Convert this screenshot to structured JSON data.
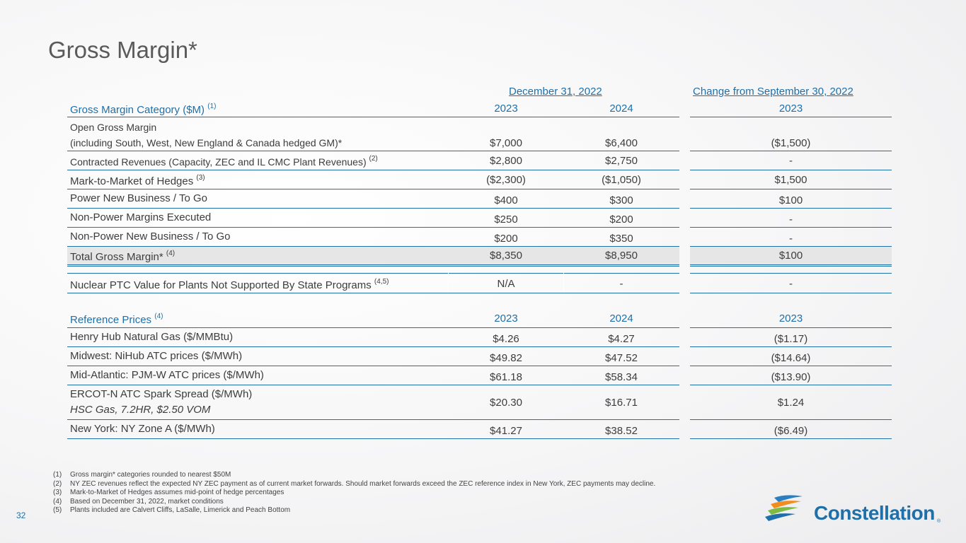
{
  "title": "Gross Margin*",
  "group_headers": {
    "dec": "December 31, 2022",
    "change": "Change from September 30, 2022"
  },
  "margin_table": {
    "category_header": "Gross Margin Category ($M)",
    "category_note": "(1)",
    "col1": "2023",
    "col2": "2024",
    "col3": "2023",
    "rows": [
      {
        "label1": "Open Gross Margin",
        "label2": "(including South, West, New England & Canada hedged GM)*",
        "note": "",
        "v1": "$7,000",
        "v2": "$6,400",
        "v3": "($1,500)"
      },
      {
        "label1": "Contracted Revenues (Capacity, ZEC and IL CMC Plant Revenues)",
        "note": "(2)",
        "v1": "$2,800",
        "v2": "$2,750",
        "v3": "-"
      },
      {
        "label1": "Mark-to-Market of Hedges",
        "note": "(3)",
        "v1": "($2,300)",
        "v2": "($1,050)",
        "v3": "$1,500"
      },
      {
        "label1": "Power New Business / To Go",
        "note": "",
        "v1": "$400",
        "v2": "$300",
        "v3": "$100"
      },
      {
        "label1": "Non-Power Margins Executed",
        "note": "",
        "v1": "$250",
        "v2": "$200",
        "v3": "-"
      },
      {
        "label1": "Non-Power New Business / To Go",
        "note": "",
        "v1": "$200",
        "v2": "$350",
        "v3": "-"
      }
    ],
    "total": {
      "label": "Total Gross Margin*",
      "note": "(4)",
      "v1": "$8,350",
      "v2": "$8,950",
      "v3": "$100"
    },
    "ptc": {
      "label": "Nuclear PTC Value for Plants Not Supported By State Programs",
      "note": "(4,5)",
      "v1": "N/A",
      "v2": "-",
      "v3": "-"
    }
  },
  "ref_table": {
    "header": "Reference Prices",
    "note": "(4)",
    "col1": "2023",
    "col2": "2024",
    "col3": "2023",
    "rows": [
      {
        "label1": "Henry Hub Natural Gas ($/MMBtu)",
        "v1": "$4.26",
        "v2": "$4.27",
        "v3": "($1.17)"
      },
      {
        "label1": "Midwest: NiHub ATC prices ($/MWh)",
        "v1": "$49.82",
        "v2": "$47.52",
        "v3": "($14.64)"
      },
      {
        "label1": "Mid-Atlantic: PJM-W ATC prices ($/MWh)",
        "v1": "$61.18",
        "v2": "$58.34",
        "v3": "($13.90)"
      },
      {
        "label1": "ERCOT-N ATC Spark Spread ($/MWh)",
        "label2": "HSC Gas, 7.2HR, $2.50 VOM",
        "v1": "$20.30",
        "v2": "$16.71",
        "v3": "$1.24"
      },
      {
        "label1": "New York: NY Zone A ($/MWh)",
        "v1": "$41.27",
        "v2": "$38.52",
        "v3": "($6.49)"
      }
    ]
  },
  "footnotes": [
    {
      "num": "(1)",
      "text": "Gross margin* categories rounded to nearest $50M"
    },
    {
      "num": "(2)",
      "text": "NY ZEC revenues reflect the expected NY ZEC payment as of current market forwards. Should market forwards exceed the ZEC reference index in New York, ZEC payments may decline."
    },
    {
      "num": "(3)",
      "text": "Mark-to-Market of Hedges assumes mid-point of hedge percentages"
    },
    {
      "num": "(4)",
      "text": "Based on December 31, 2022, market conditions"
    },
    {
      "num": "(5)",
      "text": "Plants included are Calvert Cliffs, LaSalle, Limerick and Peach Bottom"
    }
  ],
  "page_number": "32",
  "logo": {
    "name": "Constellation",
    "reg": "®"
  },
  "colors": {
    "accent": "#1f6fa8",
    "text": "#3d3d3d",
    "total_bg": "#e6e6e6"
  }
}
